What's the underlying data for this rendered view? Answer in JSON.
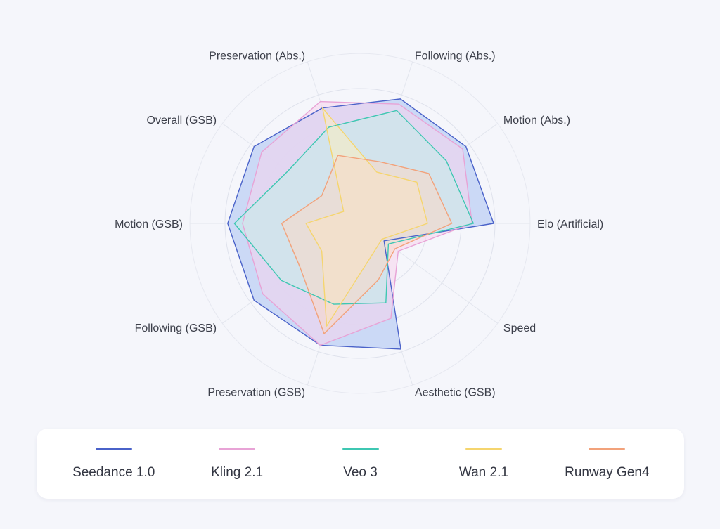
{
  "chart_data": {
    "type": "radar",
    "title": "",
    "axes": [
      "Elo (Artificial)",
      "Motion (Abs.)",
      "Following (Abs.)",
      "Preservation (Abs.)",
      "Overall (GSB)",
      "Motion (GSB)",
      "Following (GSB)",
      "Preservation (GSB)",
      "Aesthetic (GSB)",
      "Speed"
    ],
    "scale": [
      0,
      1
    ],
    "grid": true,
    "legend_position": "bottom",
    "series": [
      {
        "name": "Seedance 1.0",
        "color": "#4a62c9",
        "fill": "#c7d6f5",
        "values": [
          0.99,
          0.97,
          0.97,
          0.9,
          0.97,
          0.98,
          0.97,
          0.95,
          0.98,
          0.22
        ]
      },
      {
        "name": "Kling 2.1",
        "color": "#e8a3d6",
        "fill": "#f5d3ec",
        "values": [
          0.83,
          0.94,
          0.93,
          0.95,
          0.9,
          0.87,
          0.89,
          0.95,
          0.74,
          0.35
        ]
      },
      {
        "name": "Veo 3",
        "color": "#3ec7b2",
        "fill": "#c5eee7",
        "values": [
          0.84,
          0.79,
          0.88,
          0.75,
          0.66,
          0.93,
          0.72,
          0.63,
          0.62,
          0.26
        ]
      },
      {
        "name": "Wan 2.1",
        "color": "#f5d56e",
        "fill": "#fbeec0",
        "values": [
          0.5,
          0.52,
          0.4,
          0.9,
          0.15,
          0.4,
          0.35,
          0.8,
          0.26,
          0.2
        ]
      },
      {
        "name": "Runway Gen4",
        "color": "#f2a27b",
        "fill": "#f9d8c6",
        "values": [
          0.68,
          0.63,
          0.48,
          0.53,
          0.35,
          0.58,
          0.55,
          0.86,
          0.44,
          0.32
        ]
      }
    ]
  }
}
